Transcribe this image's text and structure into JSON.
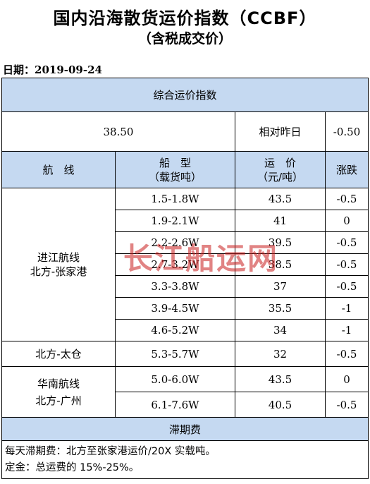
{
  "header": {
    "title": "国内沿海散货运价指数（CCBF）",
    "subtitle": "（含税成交价）",
    "date_label": "日期：",
    "date_value": "2019-09-24"
  },
  "index": {
    "section_title": "综合运价指数",
    "value": "38.50",
    "compare_label": "相对昨日",
    "change": "-0.50"
  },
  "columns": {
    "route": "航　线",
    "ship_type": "船　型",
    "ship_type_unit": "（载货吨）",
    "price": "运　价",
    "price_unit": "（元/吨）",
    "change": "涨跌"
  },
  "groups": [
    {
      "route_line1": "进江航线",
      "route_line2": "北方-张家港",
      "rows": [
        {
          "ship": "1.5-1.8W",
          "price": "43.5",
          "change": "-0.5"
        },
        {
          "ship": "1.9-2.1W",
          "price": "41",
          "change": "0"
        },
        {
          "ship": "2.2-2.6W",
          "price": "39.5",
          "change": "-0.5"
        },
        {
          "ship": "2.7-3.2W",
          "price": "38.5",
          "change": "-0.5"
        },
        {
          "ship": "3.3-3.8W",
          "price": "37",
          "change": "-0.5"
        },
        {
          "ship": "3.9-4.5W",
          "price": "35.5",
          "change": "-1"
        },
        {
          "ship": "4.6-5.2W",
          "price": "34",
          "change": "-1"
        }
      ]
    },
    {
      "route_line1": "北方-太仓",
      "route_line2": "",
      "rows": [
        {
          "ship": "5.3-5.7W",
          "price": "32",
          "change": "-0.5"
        }
      ]
    },
    {
      "route_line1": "华南航线",
      "route_line2": "北方-广州",
      "rows": [
        {
          "ship": "5.0-6.0W",
          "price": "43.5",
          "change": "0"
        },
        {
          "ship": "6.1-7.6W",
          "price": "40.5",
          "change": "-0.5"
        }
      ]
    }
  ],
  "demurrage": {
    "section_title": "滞期费",
    "note1": "每天滞期费：北方至张家港运价/20X 实载吨。",
    "note2": "定金：总运费的 15%-25%。"
  },
  "watermark": "长江船运网"
}
